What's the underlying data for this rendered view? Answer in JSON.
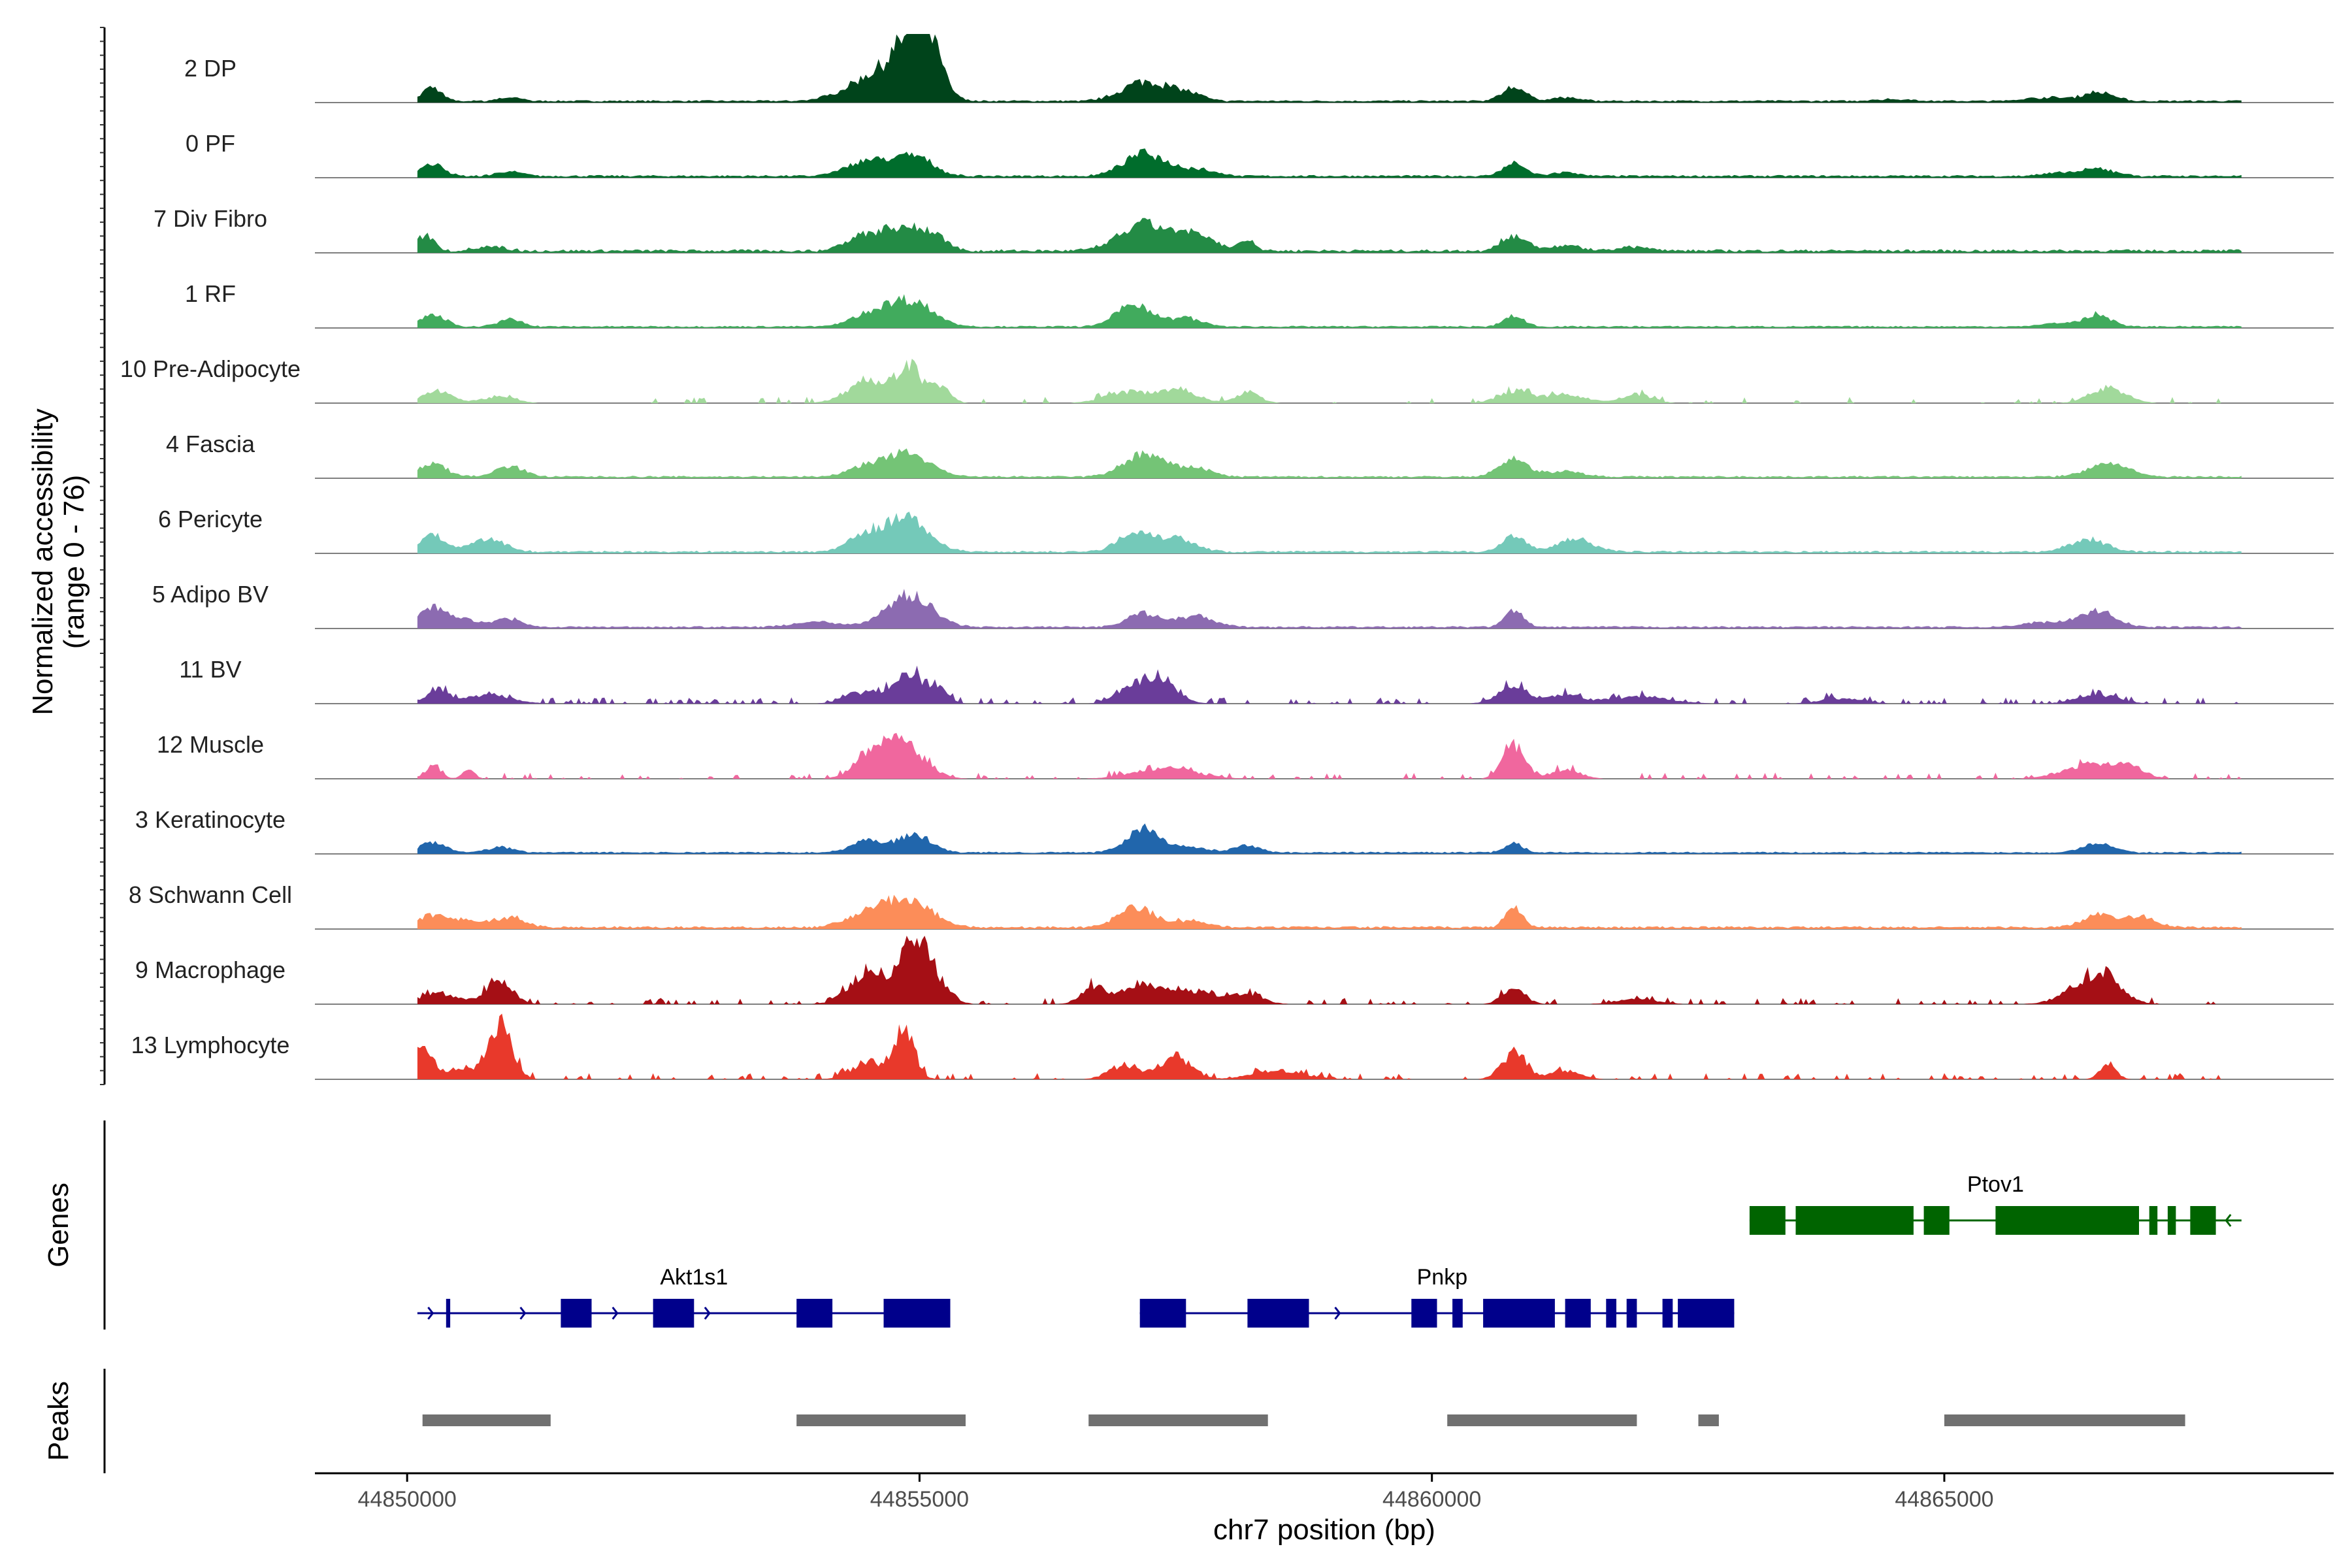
{
  "chart_data": {
    "type": "area",
    "title": "",
    "ylabel_line1": "Normalized accessibility",
    "ylabel_line2": "(range 0 - 76)",
    "y_range": [
      0,
      76
    ],
    "xlabel": "chr7 position (bp)",
    "xlim": [
      44849100,
      44868800
    ],
    "x_ticks": [
      {
        "value": 44850000,
        "label": "44850000"
      },
      {
        "value": 44855000,
        "label": "44855000"
      },
      {
        "value": 44860000,
        "label": "44860000"
      },
      {
        "value": 44865000,
        "label": "44865000"
      }
    ],
    "tracks": [
      {
        "label": "2 DP",
        "color": "#00441b",
        "noise": 0.07,
        "continuous": true,
        "peaks": [
          [
            44850240,
            16,
            90
          ],
          [
            44851000,
            4,
            110
          ],
          [
            44854600,
            30,
            280
          ],
          [
            44854950,
            58,
            180
          ],
          [
            44855100,
            34,
            120
          ],
          [
            44857200,
            22,
            220
          ],
          [
            44857600,
            8,
            160
          ],
          [
            44860800,
            16,
            110
          ],
          [
            44861300,
            4,
            140
          ],
          [
            44866500,
            10,
            150
          ],
          [
            44866000,
            4,
            200
          ],
          [
            44864500,
            2,
            200
          ]
        ]
      },
      {
        "label": "0 PF",
        "color": "#006d2c",
        "noise": 0.08,
        "continuous": true,
        "peaks": [
          [
            44850250,
            14,
            110
          ],
          [
            44851000,
            5,
            120
          ],
          [
            44854500,
            18,
            200
          ],
          [
            44854950,
            22,
            180
          ],
          [
            44857200,
            26,
            200
          ],
          [
            44857700,
            8,
            180
          ],
          [
            44860800,
            14,
            110
          ],
          [
            44861300,
            4,
            130
          ],
          [
            44866500,
            8,
            170
          ],
          [
            44866100,
            3,
            160
          ]
        ]
      },
      {
        "label": "7 Div Fibro",
        "color": "#238b45",
        "noise": 0.12,
        "continuous": true,
        "peaks": [
          [
            44850180,
            18,
            80
          ],
          [
            44850800,
            5,
            150
          ],
          [
            44854400,
            14,
            150
          ],
          [
            44854800,
            28,
            200
          ],
          [
            44855150,
            16,
            120
          ],
          [
            44857200,
            30,
            240
          ],
          [
            44857700,
            16,
            180
          ],
          [
            44858200,
            12,
            80
          ],
          [
            44860800,
            18,
            120
          ],
          [
            44861300,
            6,
            150
          ],
          [
            44862000,
            4,
            180
          ]
        ]
      },
      {
        "label": "1 RF",
        "color": "#41ab5d",
        "noise": 0.06,
        "continuous": true,
        "peaks": [
          [
            44850250,
            14,
            120
          ],
          [
            44851000,
            8,
            120
          ],
          [
            44854500,
            12,
            180
          ],
          [
            44854900,
            30,
            220
          ],
          [
            44857100,
            26,
            170
          ],
          [
            44857600,
            10,
            150
          ],
          [
            44860800,
            12,
            100
          ],
          [
            44866500,
            14,
            130
          ],
          [
            44866100,
            4,
            150
          ]
        ]
      },
      {
        "label": "10 Pre-Adipocyte",
        "color": "#a1d99b",
        "noise": 0.1,
        "continuous": false,
        "peaks": [
          [
            44850300,
            14,
            150
          ],
          [
            44850900,
            8,
            150
          ],
          [
            44854500,
            26,
            200
          ],
          [
            44854900,
            40,
            120
          ],
          [
            44855200,
            18,
            100
          ],
          [
            44857000,
            12,
            200
          ],
          [
            44857500,
            16,
            200
          ],
          [
            44858200,
            12,
            120
          ],
          [
            44860800,
            14,
            150
          ],
          [
            44861300,
            10,
            200
          ],
          [
            44862000,
            10,
            150
          ],
          [
            44866600,
            18,
            170
          ]
        ]
      },
      {
        "label": "4 Fascia",
        "color": "#74c476",
        "noise": 0.07,
        "continuous": true,
        "peaks": [
          [
            44850250,
            14,
            140
          ],
          [
            44851000,
            12,
            140
          ],
          [
            44854500,
            12,
            180
          ],
          [
            44854900,
            26,
            200
          ],
          [
            44857200,
            26,
            200
          ],
          [
            44857700,
            10,
            150
          ],
          [
            44860800,
            20,
            140
          ],
          [
            44861300,
            6,
            180
          ],
          [
            44866600,
            16,
            190
          ]
        ]
      },
      {
        "label": "6 Pericyte",
        "color": "#74c9b9",
        "noise": 0.08,
        "continuous": true,
        "peaks": [
          [
            44850250,
            18,
            130
          ],
          [
            44850800,
            14,
            160
          ],
          [
            44854500,
            20,
            180
          ],
          [
            44854900,
            36,
            200
          ],
          [
            44857100,
            22,
            160
          ],
          [
            44857500,
            16,
            180
          ],
          [
            44860800,
            18,
            110
          ],
          [
            44861400,
            14,
            180
          ],
          [
            44866400,
            14,
            180
          ]
        ]
      },
      {
        "label": "5 Adipo BV",
        "color": "#8c6bb1",
        "noise": 0.07,
        "continuous": true,
        "peaks": [
          [
            44850250,
            24,
            140
          ],
          [
            44850600,
            8,
            120
          ],
          [
            44851000,
            10,
            120
          ],
          [
            44854000,
            6,
            220
          ],
          [
            44854900,
            36,
            220
          ],
          [
            44857200,
            16,
            160
          ],
          [
            44857700,
            12,
            180
          ],
          [
            44860800,
            18,
            90
          ],
          [
            44866500,
            18,
            170
          ],
          [
            44866000,
            6,
            200
          ]
        ]
      },
      {
        "label": "11 BV",
        "color": "#6a3d9a",
        "noise": 0.22,
        "continuous": false,
        "peaks": [
          [
            44850300,
            16,
            100
          ],
          [
            44850800,
            10,
            220
          ],
          [
            44854400,
            12,
            150
          ],
          [
            44854900,
            32,
            180
          ],
          [
            44855200,
            14,
            80
          ],
          [
            44857300,
            30,
            180
          ],
          [
            44857000,
            10,
            130
          ],
          [
            44860800,
            20,
            150
          ],
          [
            44861300,
            10,
            150
          ],
          [
            44862000,
            8,
            300
          ],
          [
            44864000,
            6,
            200
          ],
          [
            44866500,
            10,
            200
          ]
        ]
      },
      {
        "label": "12 Muscle",
        "color": "#f0679e",
        "noise": 0.18,
        "continuous": false,
        "peaks": [
          [
            44850250,
            14,
            80
          ],
          [
            44850600,
            10,
            60
          ],
          [
            44854500,
            18,
            150
          ],
          [
            44854800,
            42,
            220
          ],
          [
            44857400,
            12,
            300
          ],
          [
            44860800,
            38,
            110
          ],
          [
            44861300,
            10,
            150
          ],
          [
            44866400,
            16,
            250
          ],
          [
            44866800,
            12,
            150
          ]
        ]
      },
      {
        "label": "3 Keratinocyte",
        "color": "#2166ac",
        "noise": 0.06,
        "continuous": true,
        "peaks": [
          [
            44850250,
            12,
            120
          ],
          [
            44850900,
            6,
            130
          ],
          [
            44854500,
            14,
            160
          ],
          [
            44854950,
            20,
            160
          ],
          [
            44857200,
            28,
            170
          ],
          [
            44857700,
            6,
            140
          ],
          [
            44858200,
            8,
            120
          ],
          [
            44860800,
            10,
            90
          ],
          [
            44866500,
            10,
            160
          ]
        ]
      },
      {
        "label": "8 Schwann Cell",
        "color": "#fc8d59",
        "noise": 0.09,
        "continuous": true,
        "peaks": [
          [
            44850250,
            14,
            140
          ],
          [
            44850600,
            8,
            140
          ],
          [
            44851000,
            12,
            140
          ],
          [
            44854500,
            16,
            200
          ],
          [
            44854900,
            32,
            220
          ],
          [
            44857100,
            24,
            160
          ],
          [
            44857600,
            8,
            180
          ],
          [
            44860800,
            24,
            80
          ],
          [
            44866500,
            14,
            150
          ],
          [
            44866900,
            12,
            150
          ]
        ]
      },
      {
        "label": "9 Macrophage",
        "color": "#a50f15",
        "noise": 0.2,
        "continuous": false,
        "peaks": [
          [
            44850300,
            12,
            200
          ],
          [
            44850900,
            26,
            130
          ],
          [
            44854500,
            36,
            180
          ],
          [
            44854900,
            48,
            110
          ],
          [
            44855000,
            38,
            150
          ],
          [
            44855200,
            16,
            120
          ],
          [
            44856700,
            20,
            120
          ],
          [
            44857200,
            24,
            200
          ],
          [
            44857700,
            14,
            180
          ],
          [
            44858200,
            12,
            150
          ],
          [
            44860800,
            18,
            110
          ],
          [
            44866300,
            12,
            200
          ],
          [
            44866550,
            30,
            180
          ],
          [
            44862000,
            6,
            200
          ]
        ]
      },
      {
        "label": "13 Lymphocyte",
        "color": "#e8392b",
        "noise": 0.2,
        "continuous": false,
        "peaks": [
          [
            44850150,
            36,
            100
          ],
          [
            44850500,
            12,
            120
          ],
          [
            44850900,
            64,
            120
          ],
          [
            44854500,
            20,
            160
          ],
          [
            44854850,
            54,
            100
          ],
          [
            44857500,
            26,
            150
          ],
          [
            44857000,
            16,
            150
          ],
          [
            44858500,
            10,
            250
          ],
          [
            44860800,
            30,
            120
          ],
          [
            44861300,
            10,
            150
          ],
          [
            44866600,
            16,
            80
          ]
        ]
      }
    ],
    "genes_panel_label": "Genes",
    "genes": [
      {
        "name": "Akt1s1",
        "color": "#00008b",
        "strand": "+",
        "row": 2,
        "line": [
          44850100,
          44855300
        ],
        "label_at": 44852800,
        "exons": [
          [
            44850380,
            44850420
          ],
          [
            44851500,
            44851800
          ],
          [
            44852400,
            44852800
          ],
          [
            44853800,
            44854150
          ],
          [
            44854650,
            44855300
          ]
        ]
      },
      {
        "name": "Pnkp",
        "color": "#00008b",
        "strand": "+",
        "row": 2,
        "line": [
          44857150,
          44862950
        ],
        "label_at": 44860100,
        "exons": [
          [
            44857150,
            44857600
          ],
          [
            44858200,
            44858800
          ],
          [
            44859800,
            44860050
          ],
          [
            44860200,
            44860300
          ],
          [
            44860500,
            44861200
          ],
          [
            44861300,
            44861550
          ],
          [
            44861700,
            44861800
          ],
          [
            44861900,
            44862000
          ],
          [
            44862250,
            44862350
          ],
          [
            44862400,
            44862950
          ]
        ]
      },
      {
        "name": "Ptov1",
        "color": "#006400",
        "strand": "-",
        "row": 1,
        "line": [
          44863100,
          44867900
        ],
        "label_at": 44865500,
        "exons": [
          [
            44863100,
            44863450
          ],
          [
            44863550,
            44864700
          ],
          [
            44864800,
            44865050
          ],
          [
            44865500,
            44866900
          ],
          [
            44867000,
            44867080
          ],
          [
            44867180,
            44867260
          ],
          [
            44867400,
            44867650
          ]
        ]
      }
    ],
    "peaks_panel_label": "Peaks",
    "peak_regions": [
      [
        44850150,
        44851400
      ],
      [
        44853800,
        44855450
      ],
      [
        44856650,
        44858400
      ],
      [
        44860150,
        44862000
      ],
      [
        44862600,
        44862800
      ],
      [
        44865000,
        44867350
      ]
    ],
    "peak_color": "#707070"
  }
}
